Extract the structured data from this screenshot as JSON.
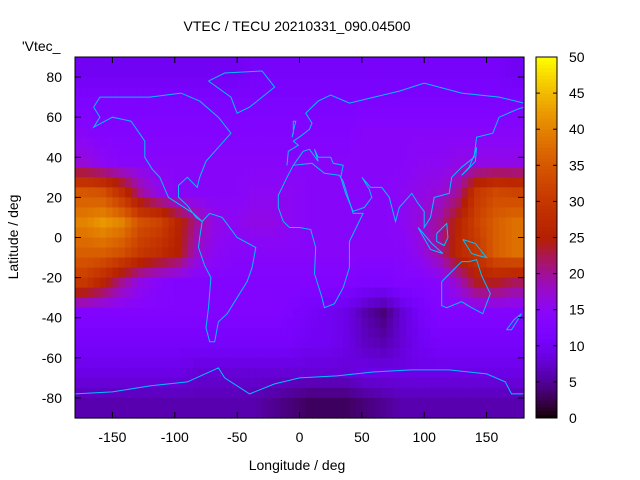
{
  "chart_data": {
    "type": "heatmap",
    "title": "VTEC / TECU 20210331_090.04500",
    "xlabel": "Longitude / deg",
    "ylabel": "Latitude / deg",
    "legend_entry": "'Vtec_",
    "legend_placement": "top-left",
    "xlim": [
      -180,
      180
    ],
    "ylim": [
      -90,
      90
    ],
    "x_ticks": [
      "-150",
      "-100",
      "-50",
      "0",
      "50",
      "100",
      "150"
    ],
    "x_tick_values": [
      -150,
      -100,
      -50,
      0,
      50,
      100,
      150
    ],
    "y_ticks": [
      "-80",
      "-60",
      "-40",
      "-20",
      "0",
      "20",
      "40",
      "60",
      "80"
    ],
    "y_tick_values": [
      -80,
      -60,
      -40,
      -20,
      0,
      20,
      40,
      60,
      80
    ],
    "colorbar": {
      "range": [
        0,
        50
      ],
      "ticks": [
        "0",
        "5",
        "10",
        "15",
        "20",
        "25",
        "30",
        "35",
        "40",
        "45",
        "50"
      ],
      "tick_values": [
        0,
        5,
        10,
        15,
        20,
        25,
        30,
        35,
        40,
        45,
        50
      ],
      "palette": "black-purple-red-orange-yellow"
    },
    "coastline_color": "#00c0ff",
    "grid_resolution_deg": 15,
    "lon_centers": [
      -172.5,
      -157.5,
      -142.5,
      -127.5,
      -112.5,
      -97.5,
      -82.5,
      -67.5,
      -52.5,
      -37.5,
      -22.5,
      -7.5,
      7.5,
      22.5,
      37.5,
      52.5,
      67.5,
      82.5,
      97.5,
      112.5,
      127.5,
      142.5,
      157.5,
      172.5
    ],
    "lat_centers": [
      82.5,
      67.5,
      52.5,
      37.5,
      22.5,
      7.5,
      -7.5,
      -22.5,
      -37.5,
      -52.5,
      -67.5,
      -82.5
    ],
    "values_tecu": [
      [
        10,
        10,
        10,
        10,
        10,
        10,
        10,
        10,
        10,
        11,
        11,
        11,
        11,
        11,
        11,
        11,
        11,
        11,
        11,
        11,
        11,
        11,
        11,
        10
      ],
      [
        12,
        12,
        12,
        12,
        12,
        12,
        12,
        12,
        12,
        12,
        12,
        12,
        12,
        12,
        12,
        12,
        12,
        12,
        12,
        12,
        12,
        12,
        12,
        12
      ],
      [
        14,
        13,
        13,
        13,
        13,
        13,
        13,
        13,
        13,
        13,
        13,
        13,
        13,
        13,
        13,
        14,
        14,
        14,
        14,
        14,
        14,
        14,
        14,
        14
      ],
      [
        17,
        15,
        14,
        14,
        14,
        14,
        14,
        14,
        14,
        14,
        14,
        14,
        14,
        14,
        14,
        14,
        14,
        14,
        15,
        15,
        16,
        16,
        16,
        16
      ],
      [
        35,
        34,
        28,
        20,
        16,
        14,
        14,
        14,
        14,
        15,
        15,
        15,
        14,
        14,
        14,
        14,
        14,
        15,
        16,
        17,
        20,
        30,
        33,
        32
      ],
      [
        40,
        42,
        40,
        34,
        32,
        26,
        20,
        16,
        15,
        16,
        16,
        15,
        14,
        14,
        14,
        14,
        14,
        15,
        17,
        20,
        26,
        32,
        36,
        38
      ],
      [
        36,
        36,
        34,
        30,
        28,
        25,
        18,
        15,
        14,
        14,
        14,
        14,
        14,
        14,
        14,
        14,
        14,
        14,
        16,
        20,
        27,
        30,
        36,
        38
      ],
      [
        30,
        26,
        20,
        16,
        14,
        13,
        13,
        13,
        13,
        13,
        13,
        13,
        13,
        13,
        13,
        12,
        12,
        13,
        13,
        14,
        18,
        24,
        24,
        22
      ],
      [
        13,
        13,
        13,
        13,
        13,
        13,
        13,
        13,
        13,
        13,
        13,
        12,
        11,
        10,
        9,
        6,
        4,
        8,
        11,
        13,
        13,
        13,
        13,
        13
      ],
      [
        11,
        11,
        11,
        11,
        11,
        11,
        11,
        11,
        11,
        11,
        11,
        11,
        10,
        10,
        9,
        7,
        6,
        8,
        10,
        11,
        11,
        11,
        11,
        11
      ],
      [
        9,
        9,
        9,
        9,
        9,
        9,
        8,
        8,
        8,
        8,
        8,
        8,
        8,
        8,
        8,
        9,
        9,
        9,
        9,
        9,
        9,
        9,
        9,
        9
      ],
      [
        6,
        6,
        6,
        6,
        6,
        6,
        6,
        6,
        6,
        6,
        5,
        4,
        3,
        3,
        3,
        4,
        5,
        6,
        6,
        6,
        6,
        6,
        6,
        6
      ]
    ]
  }
}
